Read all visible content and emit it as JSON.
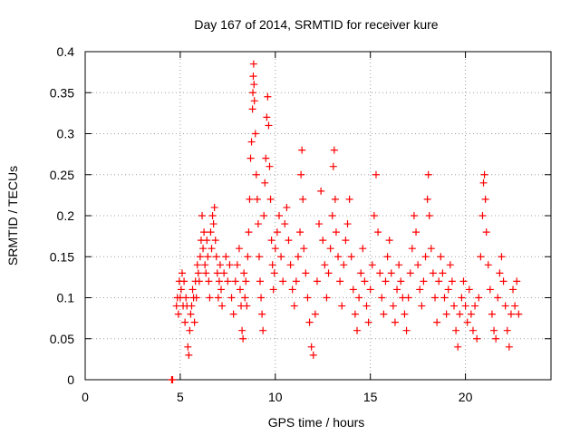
{
  "chart_data": {
    "type": "scatter",
    "title": "Day 167 of 2014, SRMTID for receiver kure",
    "xlabel": "GPS time / hours",
    "ylabel": "SRMTID / TECUs",
    "xlim": [
      0,
      24.5
    ],
    "ylim": [
      0,
      0.4
    ],
    "x_ticks": [
      0,
      5,
      10,
      15,
      20
    ],
    "x_tick_labels": [
      "0",
      "5",
      "10",
      "15",
      "20"
    ],
    "y_ticks": [
      0,
      0.05,
      0.1,
      0.15,
      0.2,
      0.25,
      0.3,
      0.35,
      0.4
    ],
    "y_tick_labels": [
      "0",
      "0.05",
      "0.1",
      "0.15",
      "0.2",
      "0.25",
      "0.3",
      "0.35",
      "0.4"
    ],
    "grid": true,
    "marker": "+",
    "series": [
      {
        "name": "SRMTID",
        "color": "#ff0000",
        "points": [
          [
            4.55,
            0.0
          ],
          [
            4.6,
            0.0
          ],
          [
            4.8,
            0.09
          ],
          [
            4.85,
            0.1
          ],
          [
            4.9,
            0.08
          ],
          [
            4.95,
            0.12
          ],
          [
            5.0,
            0.1
          ],
          [
            5.05,
            0.11
          ],
          [
            5.1,
            0.13
          ],
          [
            5.15,
            0.09
          ],
          [
            5.2,
            0.12
          ],
          [
            5.25,
            0.07
          ],
          [
            5.3,
            0.1
          ],
          [
            5.35,
            0.09
          ],
          [
            5.4,
            0.04
          ],
          [
            5.45,
            0.03
          ],
          [
            5.5,
            0.06
          ],
          [
            5.55,
            0.08
          ],
          [
            5.6,
            0.09
          ],
          [
            5.65,
            0.11
          ],
          [
            5.7,
            0.1
          ],
          [
            5.75,
            0.07
          ],
          [
            5.8,
            0.12
          ],
          [
            5.85,
            0.1
          ],
          [
            5.9,
            0.14
          ],
          [
            5.95,
            0.13
          ],
          [
            6.0,
            0.12
          ],
          [
            6.05,
            0.15
          ],
          [
            6.1,
            0.17
          ],
          [
            6.15,
            0.2
          ],
          [
            6.2,
            0.16
          ],
          [
            6.25,
            0.18
          ],
          [
            6.3,
            0.14
          ],
          [
            6.35,
            0.13
          ],
          [
            6.4,
            0.17
          ],
          [
            6.45,
            0.15
          ],
          [
            6.5,
            0.12
          ],
          [
            6.55,
            0.1
          ],
          [
            6.6,
            0.18
          ],
          [
            6.65,
            0.16
          ],
          [
            6.7,
            0.2
          ],
          [
            6.75,
            0.19
          ],
          [
            6.8,
            0.21
          ],
          [
            6.85,
            0.17
          ],
          [
            6.9,
            0.15
          ],
          [
            6.95,
            0.13
          ],
          [
            7.0,
            0.1
          ],
          [
            7.05,
            0.12
          ],
          [
            7.1,
            0.14
          ],
          [
            7.15,
            0.11
          ],
          [
            7.2,
            0.09
          ],
          [
            7.3,
            0.13
          ],
          [
            7.4,
            0.15
          ],
          [
            7.5,
            0.12
          ],
          [
            7.6,
            0.14
          ],
          [
            7.7,
            0.1
          ],
          [
            7.8,
            0.08
          ],
          [
            7.9,
            0.12
          ],
          [
            8.0,
            0.14
          ],
          [
            8.1,
            0.16
          ],
          [
            8.15,
            0.11
          ],
          [
            8.2,
            0.09
          ],
          [
            8.25,
            0.06
          ],
          [
            8.3,
            0.05
          ],
          [
            8.35,
            0.13
          ],
          [
            8.4,
            0.1
          ],
          [
            8.45,
            0.12
          ],
          [
            8.5,
            0.09
          ],
          [
            8.55,
            0.15
          ],
          [
            8.6,
            0.18
          ],
          [
            8.65,
            0.22
          ],
          [
            8.7,
            0.27
          ],
          [
            8.75,
            0.29
          ],
          [
            8.8,
            0.33
          ],
          [
            8.82,
            0.35
          ],
          [
            8.84,
            0.37
          ],
          [
            8.86,
            0.385
          ],
          [
            8.88,
            0.36
          ],
          [
            8.9,
            0.34
          ],
          [
            8.95,
            0.3
          ],
          [
            9.0,
            0.25
          ],
          [
            9.05,
            0.22
          ],
          [
            9.1,
            0.19
          ],
          [
            9.15,
            0.15
          ],
          [
            9.2,
            0.12
          ],
          [
            9.25,
            0.1
          ],
          [
            9.3,
            0.08
          ],
          [
            9.35,
            0.06
          ],
          [
            9.4,
            0.2
          ],
          [
            9.45,
            0.24
          ],
          [
            9.5,
            0.27
          ],
          [
            9.55,
            0.32
          ],
          [
            9.6,
            0.345
          ],
          [
            9.65,
            0.31
          ],
          [
            9.7,
            0.26
          ],
          [
            9.75,
            0.22
          ],
          [
            9.8,
            0.17
          ],
          [
            9.85,
            0.14
          ],
          [
            9.9,
            0.11
          ],
          [
            9.95,
            0.13
          ],
          [
            10.0,
            0.16
          ],
          [
            10.1,
            0.18
          ],
          [
            10.2,
            0.2
          ],
          [
            10.3,
            0.15
          ],
          [
            10.4,
            0.12
          ],
          [
            10.5,
            0.19
          ],
          [
            10.6,
            0.21
          ],
          [
            10.7,
            0.17
          ],
          [
            10.8,
            0.14
          ],
          [
            10.9,
            0.11
          ],
          [
            11.0,
            0.09
          ],
          [
            11.1,
            0.12
          ],
          [
            11.2,
            0.15
          ],
          [
            11.3,
            0.18
          ],
          [
            11.35,
            0.25
          ],
          [
            11.4,
            0.28
          ],
          [
            11.45,
            0.22
          ],
          [
            11.5,
            0.16
          ],
          [
            11.6,
            0.13
          ],
          [
            11.7,
            0.1
          ],
          [
            11.8,
            0.07
          ],
          [
            11.9,
            0.04
          ],
          [
            12.0,
            0.03
          ],
          [
            12.1,
            0.08
          ],
          [
            12.2,
            0.12
          ],
          [
            12.3,
            0.19
          ],
          [
            12.4,
            0.23
          ],
          [
            12.5,
            0.17
          ],
          [
            12.6,
            0.14
          ],
          [
            12.7,
            0.1
          ],
          [
            12.8,
            0.13
          ],
          [
            12.9,
            0.16
          ],
          [
            13.0,
            0.2
          ],
          [
            13.05,
            0.26
          ],
          [
            13.1,
            0.28
          ],
          [
            13.15,
            0.22
          ],
          [
            13.2,
            0.18
          ],
          [
            13.3,
            0.15
          ],
          [
            13.4,
            0.12
          ],
          [
            13.5,
            0.09
          ],
          [
            13.6,
            0.14
          ],
          [
            13.7,
            0.17
          ],
          [
            13.8,
            0.19
          ],
          [
            13.9,
            0.22
          ],
          [
            14.0,
            0.15
          ],
          [
            14.1,
            0.11
          ],
          [
            14.2,
            0.08
          ],
          [
            14.3,
            0.06
          ],
          [
            14.4,
            0.1
          ],
          [
            14.5,
            0.13
          ],
          [
            14.6,
            0.16
          ],
          [
            14.7,
            0.12
          ],
          [
            14.8,
            0.09
          ],
          [
            14.9,
            0.07
          ],
          [
            15.0,
            0.11
          ],
          [
            15.1,
            0.14
          ],
          [
            15.2,
            0.2
          ],
          [
            15.3,
            0.25
          ],
          [
            15.4,
            0.18
          ],
          [
            15.5,
            0.13
          ],
          [
            15.6,
            0.1
          ],
          [
            15.7,
            0.08
          ],
          [
            15.8,
            0.12
          ],
          [
            15.9,
            0.15
          ],
          [
            16.0,
            0.17
          ],
          [
            16.1,
            0.13
          ],
          [
            16.2,
            0.09
          ],
          [
            16.3,
            0.07
          ],
          [
            16.4,
            0.11
          ],
          [
            16.5,
            0.14
          ],
          [
            16.6,
            0.12
          ],
          [
            16.7,
            0.1
          ],
          [
            16.8,
            0.08
          ],
          [
            16.9,
            0.06
          ],
          [
            17.0,
            0.1
          ],
          [
            17.1,
            0.13
          ],
          [
            17.2,
            0.16
          ],
          [
            17.3,
            0.2
          ],
          [
            17.4,
            0.18
          ],
          [
            17.5,
            0.14
          ],
          [
            17.6,
            0.11
          ],
          [
            17.7,
            0.09
          ],
          [
            17.8,
            0.12
          ],
          [
            17.9,
            0.15
          ],
          [
            18.0,
            0.22
          ],
          [
            18.05,
            0.25
          ],
          [
            18.1,
            0.2
          ],
          [
            18.2,
            0.16
          ],
          [
            18.3,
            0.13
          ],
          [
            18.4,
            0.1
          ],
          [
            18.5,
            0.07
          ],
          [
            18.6,
            0.12
          ],
          [
            18.7,
            0.15
          ],
          [
            18.8,
            0.13
          ],
          [
            18.9,
            0.1
          ],
          [
            19.0,
            0.08
          ],
          [
            19.1,
            0.11
          ],
          [
            19.2,
            0.14
          ],
          [
            19.3,
            0.12
          ],
          [
            19.4,
            0.09
          ],
          [
            19.5,
            0.06
          ],
          [
            19.6,
            0.04
          ],
          [
            19.7,
            0.08
          ],
          [
            19.8,
            0.1
          ],
          [
            19.9,
            0.12
          ],
          [
            20.0,
            0.09
          ],
          [
            20.1,
            0.07
          ],
          [
            20.2,
            0.11
          ],
          [
            20.3,
            0.08
          ],
          [
            20.4,
            0.06
          ],
          [
            20.5,
            0.09
          ],
          [
            20.6,
            0.05
          ],
          [
            20.7,
            0.1
          ],
          [
            20.8,
            0.15
          ],
          [
            20.9,
            0.2
          ],
          [
            20.95,
            0.24
          ],
          [
            21.0,
            0.25
          ],
          [
            21.05,
            0.22
          ],
          [
            21.1,
            0.18
          ],
          [
            21.2,
            0.14
          ],
          [
            21.3,
            0.11
          ],
          [
            21.4,
            0.08
          ],
          [
            21.5,
            0.06
          ],
          [
            21.6,
            0.05
          ],
          [
            21.7,
            0.1
          ],
          [
            21.8,
            0.13
          ],
          [
            21.9,
            0.15
          ],
          [
            22.0,
            0.12
          ],
          [
            22.1,
            0.09
          ],
          [
            22.2,
            0.06
          ],
          [
            22.3,
            0.04
          ],
          [
            22.4,
            0.08
          ],
          [
            22.5,
            0.11
          ],
          [
            22.6,
            0.09
          ],
          [
            22.7,
            0.12
          ],
          [
            22.8,
            0.08
          ]
        ]
      }
    ]
  }
}
